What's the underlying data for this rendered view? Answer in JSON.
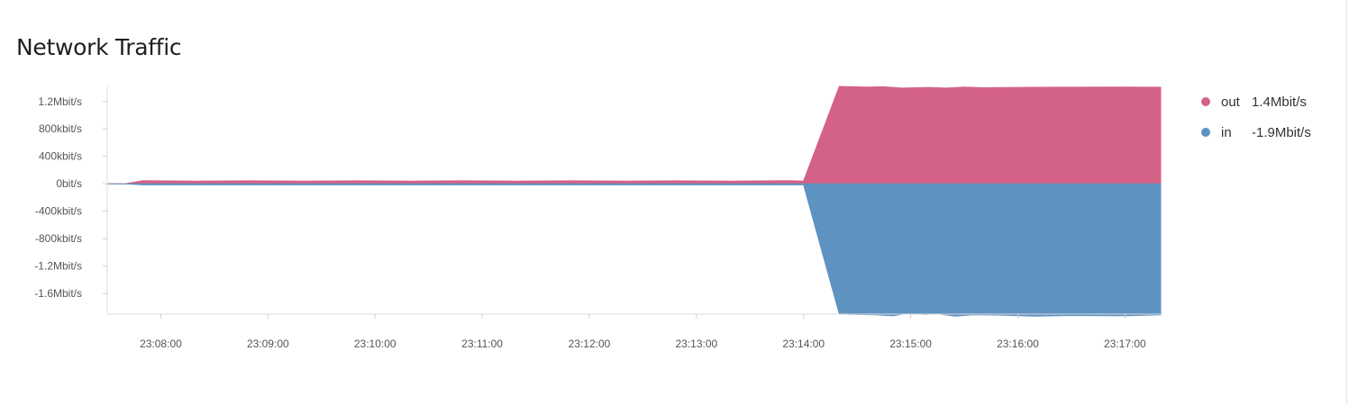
{
  "chart_data": {
    "type": "area",
    "title": "Network Traffic",
    "y_ticks": [
      {
        "label": "1.2Mbit/s",
        "value": 1200
      },
      {
        "label": "800kbit/s",
        "value": 800
      },
      {
        "label": "400kbit/s",
        "value": 400
      },
      {
        "label": "0bit/s",
        "value": 0
      },
      {
        "label": "-400kbit/s",
        "value": -400
      },
      {
        "label": "-800kbit/s",
        "value": -800
      },
      {
        "label": "-1.2Mbit/s",
        "value": -1200
      },
      {
        "label": "-1.6Mbit/s",
        "value": -1600
      }
    ],
    "ylim": [
      -1900,
      1420
    ],
    "y_unit": "kbit/s",
    "x_ticks": [
      {
        "label": "23:08:00",
        "value": "23:08:00"
      },
      {
        "label": "23:09:00",
        "value": "23:09:00"
      },
      {
        "label": "23:10:00",
        "value": "23:10:00"
      },
      {
        "label": "23:11:00",
        "value": "23:11:00"
      },
      {
        "label": "23:12:00",
        "value": "23:12:00"
      },
      {
        "label": "23:13:00",
        "value": "23:13:00"
      },
      {
        "label": "23:14:00",
        "value": "23:14:00"
      },
      {
        "label": "23:15:00",
        "value": "23:15:00"
      },
      {
        "label": "23:16:00",
        "value": "23:16:00"
      },
      {
        "label": "23:17:00",
        "value": "23:17:00"
      }
    ],
    "xlim": [
      "23:07:30",
      "23:17:20"
    ],
    "grid": false,
    "legend_position": "right",
    "series": [
      {
        "name": "out",
        "legend_value": "1.4Mbit/s",
        "color": "#d46286",
        "points": [
          [
            "23:07:30",
            0
          ],
          [
            "23:07:40",
            0
          ],
          [
            "23:07:50",
            45
          ],
          [
            "23:08:20",
            40
          ],
          [
            "23:08:50",
            44
          ],
          [
            "23:09:20",
            40
          ],
          [
            "23:09:50",
            44
          ],
          [
            "23:10:20",
            40
          ],
          [
            "23:10:50",
            44
          ],
          [
            "23:11:20",
            40
          ],
          [
            "23:11:50",
            44
          ],
          [
            "23:12:20",
            40
          ],
          [
            "23:12:50",
            44
          ],
          [
            "23:13:20",
            40
          ],
          [
            "23:13:50",
            45
          ],
          [
            "23:14:00",
            40
          ],
          [
            "23:14:20",
            1420
          ],
          [
            "23:14:35",
            1410
          ],
          [
            "23:14:45",
            1415
          ],
          [
            "23:14:55",
            1395
          ],
          [
            "23:15:10",
            1405
          ],
          [
            "23:15:20",
            1395
          ],
          [
            "23:15:30",
            1410
          ],
          [
            "23:15:40",
            1400
          ],
          [
            "23:16:00",
            1405
          ],
          [
            "23:16:30",
            1408
          ],
          [
            "23:17:00",
            1410
          ],
          [
            "23:17:20",
            1408
          ]
        ]
      },
      {
        "name": "in",
        "legend_value": "-1.9Mbit/s",
        "color": "#5e92c1",
        "points": [
          [
            "23:07:30",
            0
          ],
          [
            "23:07:40",
            0
          ],
          [
            "23:07:50",
            -15
          ],
          [
            "23:08:50",
            -15
          ],
          [
            "23:09:50",
            -15
          ],
          [
            "23:10:50",
            -15
          ],
          [
            "23:11:50",
            -15
          ],
          [
            "23:12:50",
            -15
          ],
          [
            "23:13:50",
            -15
          ],
          [
            "23:14:00",
            -15
          ],
          [
            "23:14:20",
            -1900
          ],
          [
            "23:14:40",
            -1910
          ],
          [
            "23:14:50",
            -1925
          ],
          [
            "23:14:58",
            -1890
          ],
          [
            "23:15:08",
            -1905
          ],
          [
            "23:15:15",
            -1895
          ],
          [
            "23:15:25",
            -1930
          ],
          [
            "23:15:35",
            -1910
          ],
          [
            "23:15:50",
            -1915
          ],
          [
            "23:16:10",
            -1930
          ],
          [
            "23:16:30",
            -1920
          ],
          [
            "23:17:00",
            -1925
          ],
          [
            "23:17:20",
            -1910
          ]
        ]
      }
    ]
  }
}
